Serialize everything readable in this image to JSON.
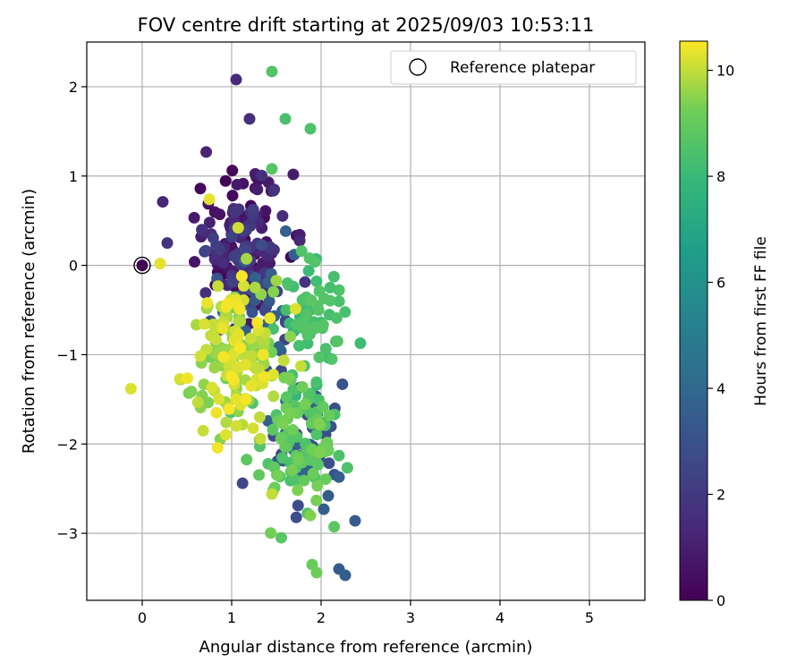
{
  "chart_data": {
    "type": "scatter",
    "title": "FOV centre drift starting at 2025/09/03 10:53:11",
    "xlabel": "Angular distance from reference (arcmin)",
    "ylabel": "Rotation from reference (arcmin)",
    "xlim": [
      -0.62,
      5.62
    ],
    "ylim": [
      -3.75,
      2.5
    ],
    "xticks": [
      0,
      1,
      2,
      3,
      4,
      5
    ],
    "xtick_labels": [
      "0",
      "1",
      "2",
      "3",
      "4",
      "5"
    ],
    "yticks": [
      -3,
      -2,
      -1,
      0,
      1,
      2
    ],
    "ytick_labels": [
      "−3",
      "−2",
      "−1",
      "0",
      "1",
      "2"
    ],
    "grid": true,
    "legend": {
      "location": "upper-right",
      "label": "Reference platepar"
    },
    "reference_point": {
      "x": 0,
      "y": 0
    },
    "colorbar": {
      "label": "Hours from first FF file",
      "range": [
        0,
        10.55
      ],
      "ticks": [
        0,
        2,
        4,
        6,
        8,
        10
      ],
      "tick_labels": [
        "0",
        "2",
        "4",
        "6",
        "8",
        "10"
      ],
      "colormap": "viridis"
    },
    "seed_points": [
      {
        "x": 1.05,
        "y": 2.08,
        "h": 1.4
      },
      {
        "x": 1.45,
        "y": 2.17,
        "h": 8.6
      },
      {
        "x": 1.6,
        "y": 1.64,
        "h": 8.4
      },
      {
        "x": 1.88,
        "y": 1.53,
        "h": 8.5
      },
      {
        "x": 1.2,
        "y": 1.64,
        "h": 1.6
      },
      {
        "x": 1.45,
        "y": 1.08,
        "h": 8.7
      },
      {
        "x": 0.28,
        "y": 0.25,
        "h": 1.8
      },
      {
        "x": 0.0,
        "y": 0.0,
        "h": 0.0
      },
      {
        "x": 0.2,
        "y": 0.02,
        "h": 10.3
      },
      {
        "x": 0.75,
        "y": 0.74,
        "h": 10.3
      },
      {
        "x": 0.65,
        "y": 0.86,
        "h": 0.3
      },
      {
        "x": 1.7,
        "y": 0.12,
        "h": 3.6
      },
      {
        "x": 1.87,
        "y": 0.08,
        "h": 8.6
      },
      {
        "x": 1.93,
        "y": 0.04,
        "h": 8.6
      },
      {
        "x": 2.1,
        "y": -0.25,
        "h": 8.3
      },
      {
        "x": 2.38,
        "y": -2.86,
        "h": 3.4
      },
      {
        "x": 2.2,
        "y": -3.4,
        "h": 3.5
      },
      {
        "x": 2.27,
        "y": -3.47,
        "h": 3.5
      },
      {
        "x": 1.9,
        "y": -3.35,
        "h": 9.1
      },
      {
        "x": 1.95,
        "y": -3.44,
        "h": 9.2
      },
      {
        "x": 0.83,
        "y": -1.65,
        "h": 10.4
      },
      {
        "x": 1.45,
        "y": -2.56,
        "h": 10.0
      },
      {
        "x": 1.88,
        "y": -2.8,
        "h": 9.4
      },
      {
        "x": 2.03,
        "y": -2.73,
        "h": 3.5
      },
      {
        "x": 2.08,
        "y": -2.58,
        "h": 3.5
      },
      {
        "x": 2.2,
        "y": -2.37,
        "h": 3.6
      },
      {
        "x": 2.2,
        "y": -2.13,
        "h": 8.5
      },
      {
        "x": 2.15,
        "y": -1.67,
        "h": 8.5
      },
      {
        "x": 2.12,
        "y": -1.05,
        "h": 8.6
      },
      {
        "x": 1.98,
        "y": -1.03,
        "h": 8.6
      }
    ],
    "clusters": [
      {
        "count": 150,
        "cx": 1.1,
        "cy": 0.25,
        "sx": 0.25,
        "sy": 0.4,
        "h_min": 0.0,
        "h_max": 2.3
      },
      {
        "count": 40,
        "cx": 1.35,
        "cy": -0.45,
        "sx": 0.25,
        "sy": 0.3,
        "h_min": 2.3,
        "h_max": 3.8
      },
      {
        "count": 45,
        "cx": 1.8,
        "cy": -1.9,
        "sx": 0.2,
        "sy": 0.35,
        "h_min": 2.5,
        "h_max": 3.8
      },
      {
        "count": 60,
        "cx": 1.85,
        "cy": -0.7,
        "sx": 0.18,
        "sy": 0.45,
        "h_min": 7.9,
        "h_max": 8.8
      },
      {
        "count": 90,
        "cx": 1.7,
        "cy": -2.0,
        "sx": 0.25,
        "sy": 0.35,
        "h_min": 8.4,
        "h_max": 9.4
      },
      {
        "count": 160,
        "cx": 1.0,
        "cy": -1.0,
        "sx": 0.28,
        "sy": 0.45,
        "h_min": 9.2,
        "h_max": 10.5
      }
    ]
  }
}
